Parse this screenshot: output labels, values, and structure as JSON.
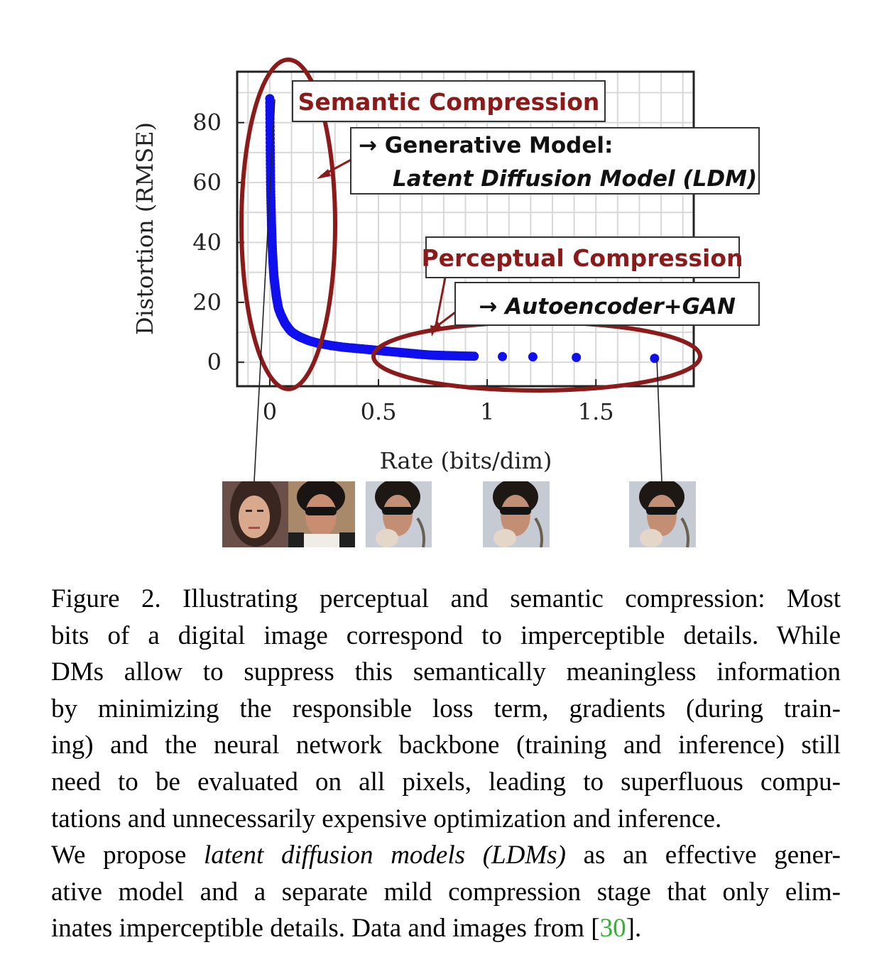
{
  "chart_data": {
    "type": "scatter",
    "xlabel": "Rate (bits/dim)",
    "ylabel": "Distortion (RMSE)",
    "xlim": [
      -0.15,
      1.95
    ],
    "ylim": [
      -8,
      97
    ],
    "x_ticks": [
      "0",
      "0.5",
      "1",
      "1.5"
    ],
    "y_ticks": [
      "0",
      "20",
      "40",
      "60",
      "80"
    ],
    "x_tick_values": [
      0,
      0.5,
      1,
      1.5
    ],
    "y_tick_values": [
      0,
      20,
      40,
      60,
      80
    ],
    "grid": true,
    "series": [
      {
        "color": "#1010ee",
        "points": [
          [
            0,
            88
          ],
          [
            0.001,
            80
          ],
          [
            0.002,
            72
          ],
          [
            0.003,
            65
          ],
          [
            0.004,
            58
          ],
          [
            0.006,
            52
          ],
          [
            0.008,
            46
          ],
          [
            0.01,
            41
          ],
          [
            0.013,
            36
          ],
          [
            0.016,
            32
          ],
          [
            0.02,
            28
          ],
          [
            0.025,
            25
          ],
          [
            0.03,
            22
          ],
          [
            0.035,
            20
          ],
          [
            0.04,
            18
          ],
          [
            0.05,
            16
          ],
          [
            0.06,
            14.5
          ],
          [
            0.07,
            13
          ],
          [
            0.08,
            12
          ],
          [
            0.09,
            11
          ],
          [
            0.1,
            10.2
          ],
          [
            0.12,
            9.2
          ],
          [
            0.14,
            8.4
          ],
          [
            0.16,
            7.8
          ],
          [
            0.18,
            7.2
          ],
          [
            0.2,
            6.8
          ],
          [
            0.22,
            6.4
          ],
          [
            0.25,
            6
          ],
          [
            0.28,
            5.6
          ],
          [
            0.31,
            5.3
          ],
          [
            0.34,
            5
          ],
          [
            0.37,
            4.8
          ],
          [
            0.4,
            4.6
          ],
          [
            0.43,
            4.4
          ],
          [
            0.46,
            4.2
          ],
          [
            0.49,
            4
          ],
          [
            0.52,
            3.8
          ],
          [
            0.55,
            3.6
          ],
          [
            0.58,
            3.4
          ],
          [
            0.61,
            3.2
          ],
          [
            0.64,
            3
          ],
          [
            0.67,
            2.8
          ],
          [
            0.7,
            2.6
          ],
          [
            0.74,
            2.4
          ],
          [
            0.78,
            2.3
          ],
          [
            0.83,
            2.2
          ],
          [
            0.88,
            2.1
          ],
          [
            0.94,
            2.0
          ],
          [
            1.07,
            1.9
          ],
          [
            1.21,
            1.8
          ],
          [
            1.41,
            1.6
          ],
          [
            1.77,
            1.3
          ]
        ]
      }
    ],
    "annotations": {
      "semantic": {
        "title": "Semantic Compression"
      },
      "generative": {
        "line1": "→ Generative Model:",
        "line2": "Latent Diffusion Model (LDM)"
      },
      "perceptual": {
        "title": "Perceptual Compression"
      },
      "autoencoder": {
        "text": "→ Autoencoder+GAN"
      }
    },
    "colors": {
      "marker": "#1010ee",
      "annotation": "#8b1a1a",
      "grid": "#d8d8d8"
    }
  },
  "thumbnails": [
    "face-thumbnail-woman",
    "face-thumbnail-man-sunglasses",
    "face-thumbnail-reconstruction-1",
    "face-thumbnail-reconstruction-2",
    "face-thumbnail-reconstruction-3"
  ],
  "caption": {
    "lines": [
      "Figure 2.  Illustrating perceptual and semantic compression: Most",
      "bits of a digital image correspond to imperceptible details. While",
      "DMs allow to suppress this semantically meaningless information",
      "by minimizing the responsible loss term, gradients (during train-",
      "ing) and the neural network backbone (training and inference) still",
      "need to be evaluated on all pixels, leading to superfluous compu-",
      "tations and unnecessarily expensive optimization and inference."
    ],
    "line8_pre": "We propose ",
    "line8_em": "latent diffusion models (LDMs)",
    "line8_post": " as an effective gener-",
    "line9": "ative model and a separate mild compression stage that only elim-",
    "line10_pre": "inates imperceptible details. Data and images from [",
    "line10_cite": "30",
    "line10_post": "]."
  }
}
